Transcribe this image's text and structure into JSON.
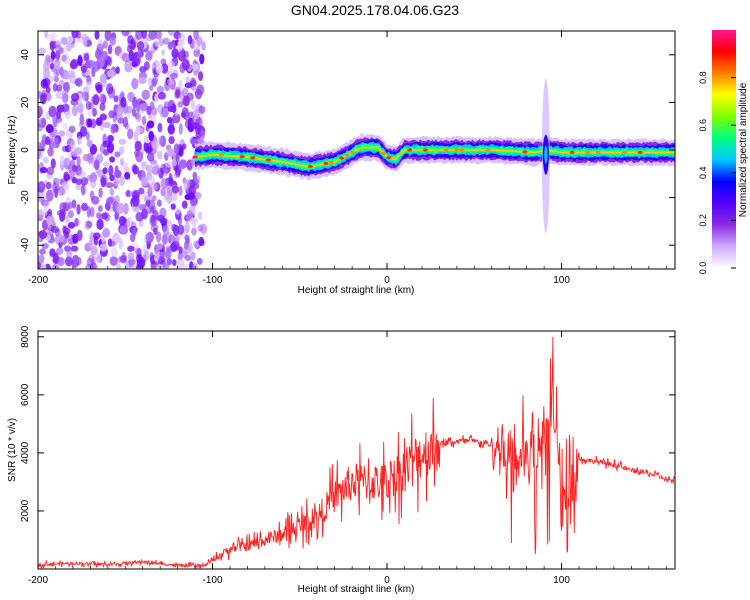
{
  "title": "GN04.2025.178.04.06.G23",
  "chart_data": [
    {
      "type": "heatmap",
      "xlabel": "Height of straight line (km)",
      "ylabel": "Frequency (Hz)",
      "xlim": [
        -200,
        165
      ],
      "ylim": [
        -50,
        50
      ],
      "xticks": [
        -200,
        -100,
        0,
        100
      ],
      "yticks": [
        -40,
        -20,
        0,
        20,
        40
      ],
      "xtick_labels": [
        "-200",
        "-100",
        "0",
        "100"
      ],
      "ytick_labels": [
        "-40",
        "-20",
        "0",
        "20",
        "40"
      ],
      "colorbar": {
        "label": "Normalized spectral amplitude",
        "range": [
          0,
          1
        ],
        "ticks": [
          0,
          0.2,
          0.4,
          0.6,
          0.8
        ],
        "tick_labels": [
          "0.0",
          "0.2",
          "0.4",
          "0.6",
          "0.8"
        ],
        "colors": [
          "#ffffff",
          "#cfa8ff",
          "#8a2be2",
          "#5500ff",
          "#0000ff",
          "#00c8ff",
          "#00ff7f",
          "#7fff00",
          "#ffff00",
          "#ff7f00",
          "#ff0000",
          "#ff1493"
        ]
      },
      "signal_track": {
        "x_km": [
          -110,
          -100,
          -80,
          -60,
          -45,
          -30,
          -20,
          -15,
          -5,
          0,
          5,
          10,
          30,
          60,
          85,
          92,
          100,
          165
        ],
        "freq_hz": [
          -3,
          -2,
          -3,
          -5,
          -7,
          -5,
          -1,
          1,
          1,
          -3,
          -4,
          0,
          0,
          0,
          -1,
          0,
          -1,
          -1
        ]
      },
      "noise_region_km": [
        -200,
        -105
      ],
      "burst": {
        "x_km": 91,
        "freq_span_hz": [
          -35,
          30
        ]
      }
    },
    {
      "type": "line",
      "xlabel": "Height of straight line (km)",
      "ylabel": "SNR (10 * v/v)",
      "xlim": [
        -200,
        165
      ],
      "ylim": [
        0,
        8200
      ],
      "xticks": [
        -200,
        -100,
        0,
        100
      ],
      "yticks": [
        2000,
        4000,
        6000,
        8000
      ],
      "xtick_labels": [
        "-200",
        "-100",
        "0",
        "100"
      ],
      "ytick_labels": [
        "2000",
        "4000",
        "6000",
        "8000"
      ],
      "color": "#ff2020",
      "x": [
        -200,
        -180,
        -160,
        -140,
        -120,
        -105,
        -100,
        -90,
        -80,
        -70,
        -60,
        -50,
        -40,
        -30,
        -20,
        -10,
        0,
        10,
        20,
        30,
        40,
        50,
        60,
        70,
        80,
        90,
        95,
        100,
        110,
        120,
        130,
        140,
        150,
        165
      ],
      "y": [
        150,
        200,
        150,
        250,
        120,
        100,
        300,
        700,
        800,
        1000,
        1200,
        1500,
        1800,
        2500,
        3000,
        3000,
        3000,
        3500,
        4000,
        4300,
        4400,
        4400,
        4300,
        4000,
        3800,
        4200,
        6000,
        2000,
        3800,
        3700,
        3600,
        3400,
        3300,
        3000
      ]
    }
  ]
}
